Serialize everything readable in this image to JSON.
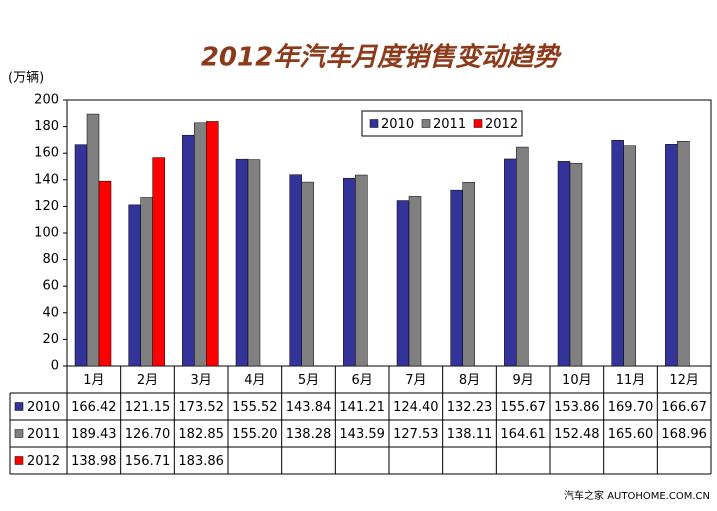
{
  "chart_data": {
    "type": "bar",
    "title": "2012年汽车月度销售变动趋势",
    "y_label": "(万辆)",
    "categories": [
      "1月",
      "2月",
      "3月",
      "4月",
      "5月",
      "6月",
      "7月",
      "8月",
      "9月",
      "10月",
      "11月",
      "12月"
    ],
    "series": [
      {
        "name": "2010",
        "color": "#333399",
        "values": [
          166.42,
          121.15,
          173.52,
          155.52,
          143.84,
          141.21,
          124.4,
          132.23,
          155.67,
          153.86,
          169.7,
          166.67
        ],
        "value_labels": [
          "166.42",
          "121.15",
          "173.52",
          "155.52",
          "143.84",
          "141.21",
          "124.40",
          "132.23",
          "155.67",
          "153.86",
          "169.70",
          "166.67"
        ]
      },
      {
        "name": "2011",
        "color": "#808080",
        "values": [
          189.43,
          126.7,
          182.85,
          155.2,
          138.28,
          143.59,
          127.53,
          138.11,
          164.61,
          152.48,
          165.6,
          168.96
        ],
        "value_labels": [
          "189.43",
          "126.70",
          "182.85",
          "155.20",
          "138.28",
          "143.59",
          "127.53",
          "138.11",
          "164.61",
          "152.48",
          "165.60",
          "168.96"
        ]
      },
      {
        "name": "2012",
        "color": "#ff0000",
        "values": [
          138.98,
          156.71,
          183.86,
          null,
          null,
          null,
          null,
          null,
          null,
          null,
          null,
          null
        ],
        "value_labels": [
          "138.98",
          "156.71",
          "183.86",
          null,
          null,
          null,
          null,
          null,
          null,
          null,
          null,
          null
        ]
      }
    ],
    "ylim": [
      0,
      200
    ],
    "yticks": [
      0,
      20,
      40,
      60,
      80,
      100,
      120,
      140,
      160,
      180,
      200
    ],
    "grid": false,
    "legend": "top",
    "watermark": "汽车之家 AUTOHOME.COM.CN"
  }
}
